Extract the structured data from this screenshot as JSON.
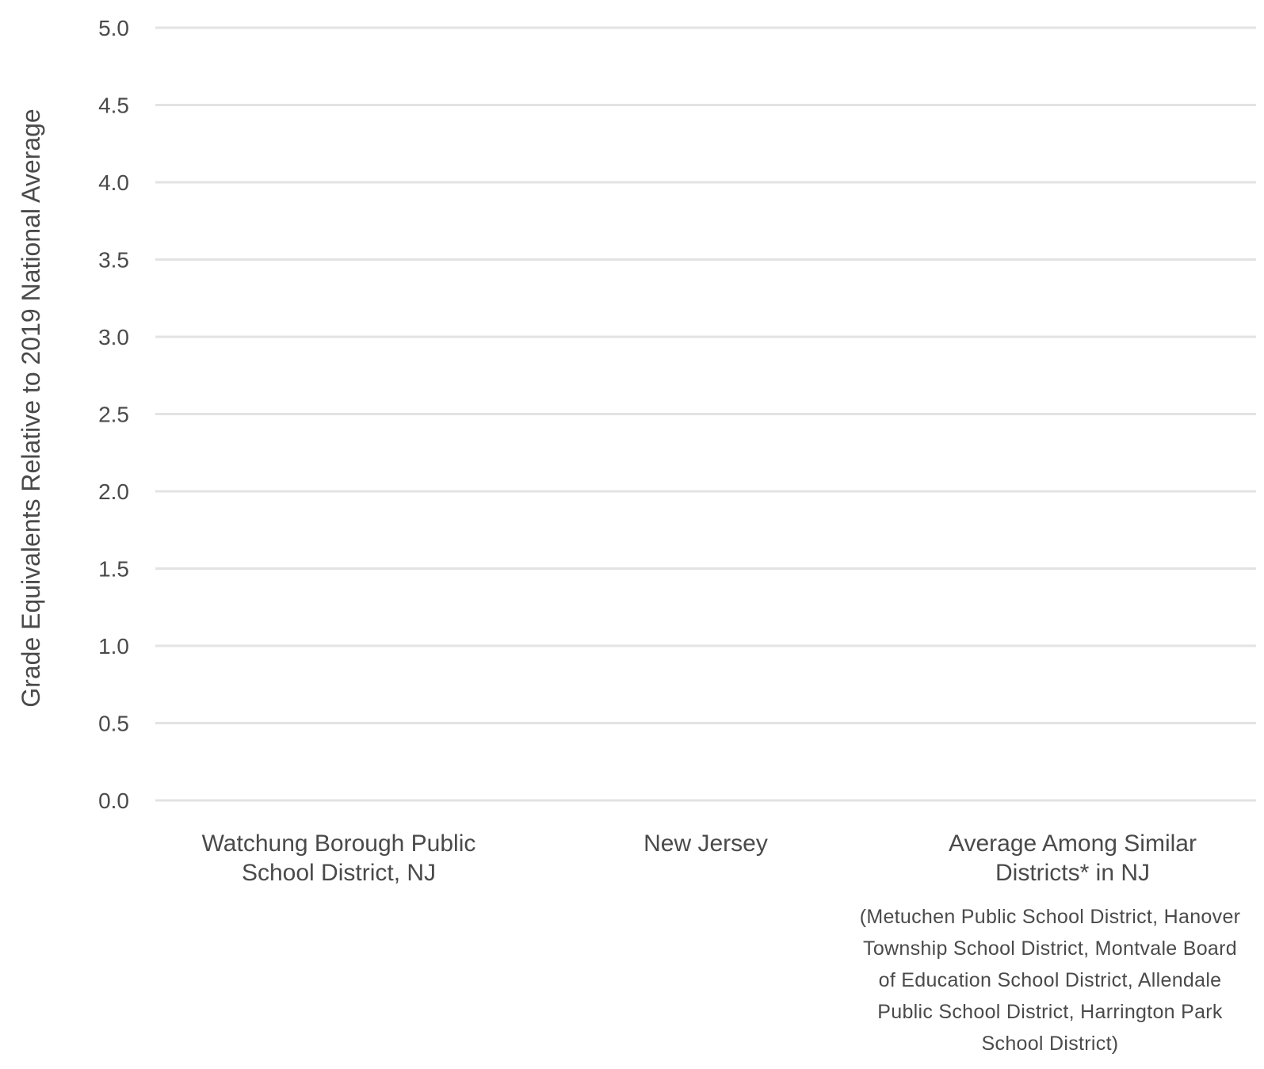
{
  "chart_data": {
    "type": "bar",
    "ylabel": "Grade Equivalents Relative to 2019 National Average",
    "xlabel": "",
    "ylim": [
      0,
      5
    ],
    "yticks": [
      "0.0",
      "0.5",
      "1.0",
      "1.5",
      "2.0",
      "2.5",
      "3.0",
      "3.5",
      "4.0",
      "4.5",
      "5.0"
    ],
    "grid": true,
    "categories": [
      [
        "Watchung Borough Public",
        "School District, NJ"
      ],
      [
        "New Jersey"
      ],
      [
        "Average Among Similar",
        "Districts* in NJ"
      ]
    ],
    "values": [
      null,
      null,
      null
    ],
    "annotations": [
      "(Metuchen Public School District, Hanover",
      "Township School District, Montvale Board",
      "of Education School District, Allendale",
      "Public School District, Harrington Park",
      "School District)"
    ]
  },
  "colors": {
    "grid": "#e3e3e3",
    "text": "#4a4a4a"
  }
}
